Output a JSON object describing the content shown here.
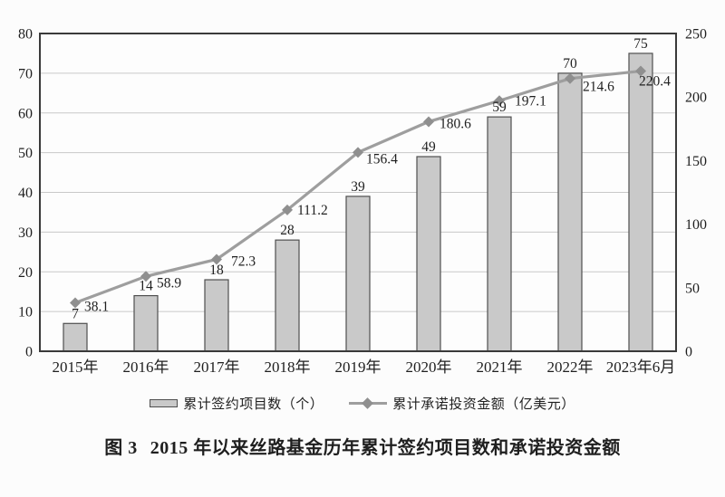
{
  "figure": {
    "caption_label": "图 3",
    "caption_text": "2015 年以来丝路基金历年累计签约项目数和承诺投资金额"
  },
  "legend": {
    "items": [
      {
        "label": "累计签约项目数（个）",
        "swatch": "bar-rect"
      },
      {
        "label": "累计承诺投资金额（亿美元）",
        "swatch": "line-diamond"
      }
    ]
  },
  "chart_data": {
    "type": "bar+line",
    "title": "图 3 2015 年以来丝路基金历年累计签约项目数和承诺投资金额",
    "categories": [
      "2015年",
      "2016年",
      "2017年",
      "2018年",
      "2019年",
      "2020年",
      "2021年",
      "2022年",
      "2023年6月"
    ],
    "series": [
      {
        "name": "累计签约项目数（个）",
        "type": "bar",
        "axis": "left",
        "values": [
          7,
          14,
          18,
          28,
          39,
          49,
          59,
          70,
          75
        ]
      },
      {
        "name": "累计承诺投资金额（亿美元）",
        "type": "line",
        "axis": "right",
        "values": [
          38.1,
          58.9,
          72.3,
          111.2,
          156.4,
          180.6,
          197.1,
          214.6,
          220.4
        ]
      }
    ],
    "left_axis": {
      "min": 0,
      "max": 80,
      "ticks": [
        0,
        10,
        20,
        30,
        40,
        50,
        60,
        70,
        80
      ]
    },
    "right_axis": {
      "min": 0,
      "max": 250,
      "ticks": [
        0,
        50,
        100,
        150,
        200,
        250
      ]
    },
    "grid": true,
    "legend_position": "bottom",
    "colors": {
      "bar_fill": "#c9c9c9",
      "bar_border": "#4f4f4f",
      "line": "#9e9e9e",
      "marker": "#8f8f8f",
      "grid": "#c8c8c8",
      "frame": "#3a3a3a",
      "text": "#1f1f1f",
      "plot_background": "#fdfdfd"
    }
  }
}
